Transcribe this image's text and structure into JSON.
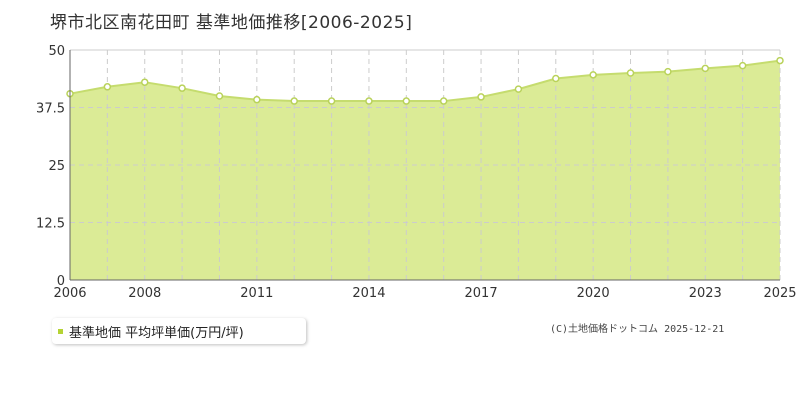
{
  "chart_data": {
    "type": "area",
    "title": "堺市北区南花田町 基準地価推移[2006-2025]",
    "x": [
      2006,
      2007,
      2008,
      2009,
      2010,
      2011,
      2012,
      2013,
      2014,
      2015,
      2016,
      2017,
      2018,
      2019,
      2020,
      2021,
      2022,
      2023,
      2024,
      2025
    ],
    "x_tick_labels": [
      "2006",
      "2008",
      "2011",
      "2014",
      "2017",
      "2020",
      "2023",
      "2025"
    ],
    "series": [
      {
        "name": "基準地価 平均坪単価(万円/坪)",
        "values": [
          40.5,
          42.0,
          43.0,
          41.7,
          40.0,
          39.2,
          38.9,
          38.9,
          38.9,
          38.9,
          38.9,
          39.8,
          41.5,
          43.8,
          44.6,
          45.0,
          45.3,
          46.0,
          46.6,
          47.7
        ]
      }
    ],
    "ylim": [
      0,
      50
    ],
    "y_ticks": [
      0,
      12.5,
      25,
      37.5,
      50
    ],
    "y_tick_labels": [
      "0",
      "12.5",
      "25",
      "37.5",
      "50"
    ],
    "grid": true,
    "legend_position": "bottom-left",
    "colors": {
      "fill": "#dbeb96",
      "line": "#c5dc6e",
      "marker_stroke": "#b9d25a",
      "marker_fill": "#ffffff",
      "grid": "#cccccc",
      "legend_swatch": "#b5d334"
    }
  },
  "copyright": "(C)土地価格ドットコム 2025-12-21"
}
